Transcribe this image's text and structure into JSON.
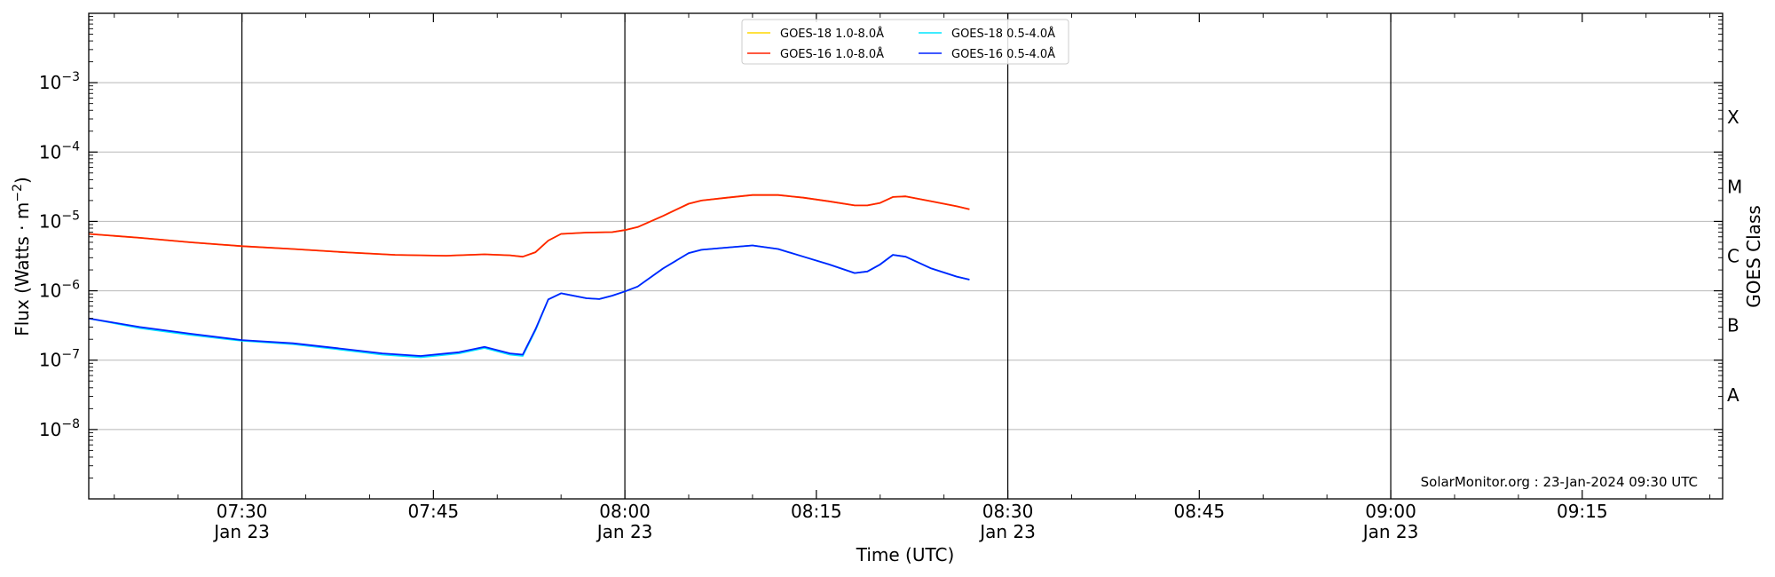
{
  "chart_data": {
    "type": "line",
    "xlabel": "Time (UTC)",
    "ylabel": "Flux (Watts · m",
    "ylabel_sup": "−2",
    "ylabel_close": ")",
    "right_label": "GOES Class",
    "y_scale": "log",
    "xlim": [
      "07:18",
      "09:26"
    ],
    "ylim": [
      1e-09,
      0.01
    ],
    "grid": "horizontal at decades",
    "legend_position": "top-center",
    "credit": "SolarMonitor.org : 23-Jan-2024 09:30 UTC",
    "x_ticks": [
      {
        "time": "07:30",
        "label": "07:30",
        "date": "Jan 23"
      },
      {
        "time": "07:45",
        "label": "07:45",
        "date": ""
      },
      {
        "time": "08:00",
        "label": "08:00",
        "date": "Jan 23"
      },
      {
        "time": "08:15",
        "label": "08:15",
        "date": ""
      },
      {
        "time": "08:30",
        "label": "08:30",
        "date": "Jan 23"
      },
      {
        "time": "08:45",
        "label": "08:45",
        "date": ""
      },
      {
        "time": "09:00",
        "label": "09:00",
        "date": "Jan 23"
      },
      {
        "time": "09:15",
        "label": "09:15",
        "date": ""
      }
    ],
    "day_lines": [
      "07:30",
      "08:00",
      "08:30",
      "09:00"
    ],
    "y_ticks": [
      {
        "value": 1e-08,
        "base": "10",
        "exp": "−8"
      },
      {
        "value": 1e-07,
        "base": "10",
        "exp": "−7"
      },
      {
        "value": 1e-06,
        "base": "10",
        "exp": "−6"
      },
      {
        "value": 1e-05,
        "base": "10",
        "exp": "−5"
      },
      {
        "value": 0.0001,
        "base": "10",
        "exp": "−4"
      },
      {
        "value": 0.001,
        "base": "10",
        "exp": "−3"
      }
    ],
    "goes_classes": [
      {
        "label": "A",
        "value": 3.16e-08
      },
      {
        "label": "B",
        "value": 3.16e-07
      },
      {
        "label": "C",
        "value": 3.16e-06
      },
      {
        "label": "M",
        "value": 3.16e-05
      },
      {
        "label": "X",
        "value": 0.000316
      }
    ],
    "legend": [
      {
        "label": "GOES-18 1.0-8.0Å",
        "color": "#ffd700"
      },
      {
        "label": "GOES-18 0.5-4.0Å",
        "color": "#00e5ff"
      },
      {
        "label": "GOES-16 1.0-8.0Å",
        "color": "#ff2200"
      },
      {
        "label": "GOES-16 0.5-4.0Å",
        "color": "#0022ff"
      }
    ],
    "series": [
      {
        "name": "GOES-18 1.0-8.0Å",
        "color": "#ffd700",
        "x": [
          "07:18",
          "07:22",
          "07:26",
          "07:30",
          "07:34",
          "07:38",
          "07:42",
          "07:46",
          "07:49",
          "07:51",
          "07:52",
          "07:53",
          "07:54",
          "07:55",
          "07:57",
          "07:59",
          "08:00",
          "08:01",
          "08:03",
          "08:05",
          "08:06",
          "08:08",
          "08:10",
          "08:12",
          "08:14",
          "08:16",
          "08:18",
          "08:19",
          "08:20",
          "08:21",
          "08:22",
          "08:24",
          "08:26",
          "08:27"
        ],
        "values": [
          6.6e-06,
          5.8e-06,
          5e-06,
          4.4e-06,
          4e-06,
          3.6e-06,
          3.3e-06,
          3.2e-06,
          3.35e-06,
          3.25e-06,
          3.1e-06,
          3.6e-06,
          5.3e-06,
          6.6e-06,
          6.9e-06,
          7e-06,
          7.5e-06,
          8.3e-06,
          1.2e-05,
          1.8e-05,
          2e-05,
          2.2e-05,
          2.4e-05,
          2.4e-05,
          2.2e-05,
          1.95e-05,
          1.7e-05,
          1.7e-05,
          1.85e-05,
          2.25e-05,
          2.3e-05,
          1.95e-05,
          1.65e-05,
          1.5e-05
        ]
      },
      {
        "name": "GOES-16 1.0-8.0Å",
        "color": "#ff2200",
        "x": [
          "07:18",
          "07:22",
          "07:26",
          "07:30",
          "07:34",
          "07:38",
          "07:42",
          "07:46",
          "07:49",
          "07:51",
          "07:52",
          "07:53",
          "07:54",
          "07:55",
          "07:57",
          "07:59",
          "08:00",
          "08:01",
          "08:03",
          "08:05",
          "08:06",
          "08:08",
          "08:10",
          "08:12",
          "08:14",
          "08:16",
          "08:18",
          "08:19",
          "08:20",
          "08:21",
          "08:22",
          "08:24",
          "08:26",
          "08:27"
        ],
        "values": [
          6.6e-06,
          5.8e-06,
          5e-06,
          4.4e-06,
          4e-06,
          3.6e-06,
          3.3e-06,
          3.2e-06,
          3.35e-06,
          3.25e-06,
          3.1e-06,
          3.6e-06,
          5.3e-06,
          6.6e-06,
          6.9e-06,
          7e-06,
          7.5e-06,
          8.3e-06,
          1.2e-05,
          1.8e-05,
          2e-05,
          2.2e-05,
          2.4e-05,
          2.4e-05,
          2.2e-05,
          1.95e-05,
          1.7e-05,
          1.7e-05,
          1.85e-05,
          2.25e-05,
          2.3e-05,
          1.95e-05,
          1.65e-05,
          1.5e-05
        ]
      },
      {
        "name": "GOES-18 0.5-4.0Å",
        "color": "#00e5ff",
        "x": [
          "07:18",
          "07:22",
          "07:26",
          "07:30",
          "07:34",
          "07:38",
          "07:41",
          "07:44",
          "07:47",
          "07:49",
          "07:51",
          "07:52",
          "07:53",
          "07:54",
          "07:55",
          "07:57",
          "07:58",
          "07:59",
          "08:00",
          "08:01",
          "08:03",
          "08:05",
          "08:06",
          "08:08",
          "08:10",
          "08:12",
          "08:14",
          "08:16",
          "08:18",
          "08:19",
          "08:20",
          "08:21",
          "08:22",
          "08:24",
          "08:26",
          "08:27"
        ],
        "values": [
          4e-07,
          2.9e-07,
          2.3e-07,
          1.9e-07,
          1.7e-07,
          1.4e-07,
          1.2e-07,
          1.1e-07,
          1.25e-07,
          1.5e-07,
          1.2e-07,
          1.15e-07,
          2.7e-07,
          7.5e-07,
          9.2e-07,
          7.8e-07,
          7.6e-07,
          8.5e-07,
          9.8e-07,
          1.15e-06,
          2.1e-06,
          3.5e-06,
          3.9e-06,
          4.2e-06,
          4.5e-06,
          4e-06,
          3.1e-06,
          2.4e-06,
          1.8e-06,
          1.9e-06,
          2.4e-06,
          3.3e-06,
          3.1e-06,
          2.1e-06,
          1.6e-06,
          1.45e-06
        ]
      },
      {
        "name": "GOES-16 0.5-4.0Å",
        "color": "#0022ff",
        "x": [
          "07:18",
          "07:22",
          "07:26",
          "07:30",
          "07:34",
          "07:38",
          "07:41",
          "07:44",
          "07:47",
          "07:49",
          "07:51",
          "07:52",
          "07:53",
          "07:54",
          "07:55",
          "07:57",
          "07:58",
          "07:59",
          "08:00",
          "08:01",
          "08:03",
          "08:05",
          "08:06",
          "08:08",
          "08:10",
          "08:12",
          "08:14",
          "08:16",
          "08:18",
          "08:19",
          "08:20",
          "08:21",
          "08:22",
          "08:24",
          "08:26",
          "08:27"
        ],
        "values": [
          4e-07,
          3e-07,
          2.4e-07,
          1.95e-07,
          1.75e-07,
          1.45e-07,
          1.25e-07,
          1.15e-07,
          1.3e-07,
          1.55e-07,
          1.25e-07,
          1.2e-07,
          2.8e-07,
          7.5e-07,
          9.2e-07,
          7.8e-07,
          7.6e-07,
          8.5e-07,
          9.8e-07,
          1.15e-06,
          2.1e-06,
          3.5e-06,
          3.9e-06,
          4.2e-06,
          4.5e-06,
          4e-06,
          3.1e-06,
          2.4e-06,
          1.8e-06,
          1.9e-06,
          2.4e-06,
          3.3e-06,
          3.1e-06,
          2.1e-06,
          1.6e-06,
          1.45e-06
        ]
      }
    ]
  }
}
